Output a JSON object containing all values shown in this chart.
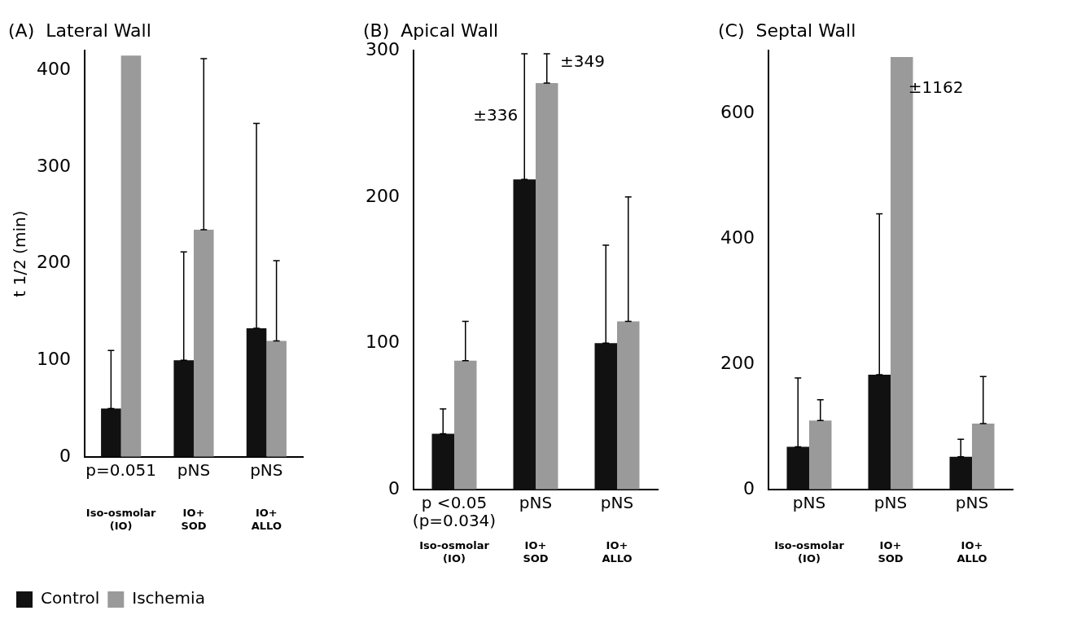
{
  "chart_data": [
    {
      "type": "bar",
      "title": "(A)  Lateral Wall",
      "ylabel": "t 1/2 (min)",
      "categories": [
        "Iso-osmolar\n(IO)",
        "IO+\nSOD",
        "IO+\nALLO"
      ],
      "ylim": [
        0,
        420
      ],
      "yticks": [
        0,
        100,
        200,
        300,
        400
      ],
      "grid": false,
      "legend": "bottom left",
      "series": [
        {
          "name": "Control",
          "color": "#111111",
          "values": [
            50,
            100,
            133
          ],
          "errors": [
            [
              50,
              110
            ],
            [
              100,
              212
            ],
            [
              133,
              345
            ]
          ]
        },
        {
          "name": "Ischemia",
          "color": "#9a9a9a",
          "values": [
            415,
            235,
            120
          ],
          "errors": [
            null,
            [
              235,
              412
            ],
            [
              120,
              203
            ]
          ]
        }
      ],
      "annotations": [
        "p=0.051",
        "pNS",
        "pNS"
      ]
    },
    {
      "type": "bar",
      "title": "(B)  Apical Wall",
      "categories": [
        "Iso-osmolar\n(IO)",
        "IO+\nSOD",
        "IO+\nALLO"
      ],
      "ylim": [
        0,
        300
      ],
      "yticks": [
        0,
        100,
        200,
        300
      ],
      "grid": false,
      "series": [
        {
          "color": "#111111",
          "values": [
            38,
            212,
            100
          ],
          "errors": [
            [
              38,
              55
            ],
            [
              212,
              298
            ],
            [
              100,
              167
            ]
          ]
        },
        {
          "color": "#9a9a9a",
          "values": [
            88,
            278,
            115
          ],
          "errors": [
            [
              88,
              115
            ],
            [
              278,
              298
            ],
            [
              115,
              200
            ]
          ]
        }
      ],
      "annotations": [
        "p <0.05\n(p=0.034)",
        "pNS",
        "pNS",
        {
          "text": "±336",
          "x": "IO+\nSOD",
          "y": 255
        },
        "±349"
      ]
    },
    {
      "type": "bar",
      "title": "(C)  Septal Wall",
      "categories": [
        "Iso-osmolar\n(IO)",
        "IO+\nSOD",
        "IO+\nALLO"
      ],
      "ylim": [
        0,
        700
      ],
      "yticks": [
        0,
        200,
        400,
        600
      ],
      "grid": false,
      "series": [
        {
          "color": "#111111",
          "values": [
            68,
            183,
            52
          ],
          "errors": [
            [
              68,
              178
            ],
            [
              183,
              440
            ],
            [
              52,
              80
            ]
          ]
        },
        {
          "color": "#9a9a9a",
          "values": [
            110,
            690,
            105
          ],
          "errors": [
            [
              110,
              143
            ],
            null,
            [
              105,
              180
            ]
          ]
        }
      ],
      "annotations": [
        "pNS",
        "pNS",
        "pNS",
        {
          "text": "±1162",
          "x": "IO+\nSOD",
          "y": 640
        }
      ]
    }
  ]
}
